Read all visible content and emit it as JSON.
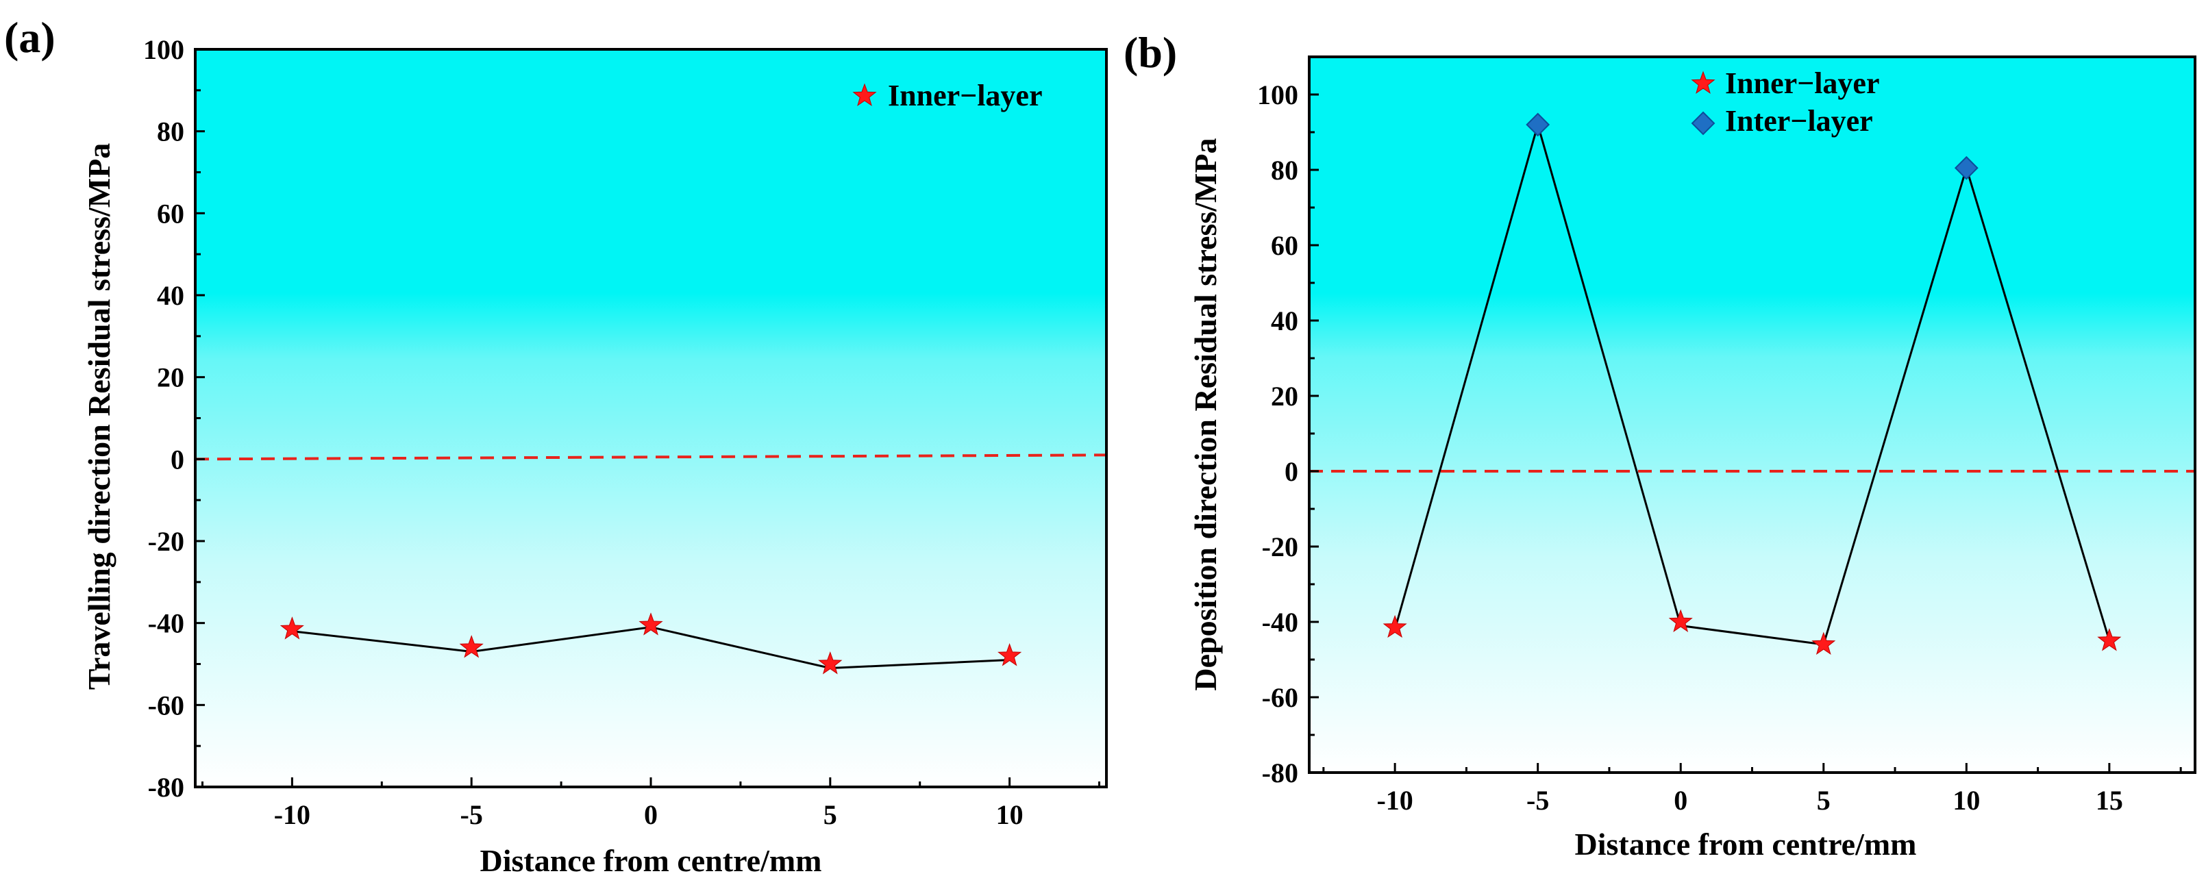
{
  "chart_data": [
    {
      "type": "line",
      "panel_label": "(a)",
      "xlabel": "Distance from centre/mm",
      "ylabel": "Travelling direction Residual stress/MPa",
      "xlim": [
        -12.7,
        12.7
      ],
      "ylim": [
        -80,
        100
      ],
      "xticks": [
        -10,
        -5,
        0,
        5,
        10
      ],
      "xtick_labels": [
        "-10",
        "-5",
        "0",
        "5",
        "10"
      ],
      "yticks": [
        -80,
        -60,
        -40,
        -20,
        0,
        20,
        40,
        60,
        80,
        100
      ],
      "ytick_labels": [
        "-80",
        "-60",
        "-40",
        "-20",
        "0",
        "20",
        "40",
        "60",
        "80",
        "100"
      ],
      "reference_line": {
        "y_start": 0,
        "y_end": 1,
        "style": "dashed",
        "color": "#e8231c"
      },
      "background": "gradient cyan (top) to white (bottom)",
      "legend_position": "top-right",
      "line_points": [
        {
          "x": -10,
          "y": -42
        },
        {
          "x": -5,
          "y": -47
        },
        {
          "x": 0,
          "y": -41
        },
        {
          "x": 5,
          "y": -51
        },
        {
          "x": 10,
          "y": -49
        }
      ],
      "series": [
        {
          "name": "Inner−layer",
          "marker": "star",
          "color": "#ff1a1a",
          "points": [
            {
              "x": -10,
              "y": -41.5
            },
            {
              "x": -5,
              "y": -46
            },
            {
              "x": 0,
              "y": -40.5
            },
            {
              "x": 5,
              "y": -50
            },
            {
              "x": 10,
              "y": -48
            }
          ]
        }
      ]
    },
    {
      "type": "line",
      "panel_label": "(b)",
      "xlabel": "Distance from centre/mm",
      "ylabel": "Deposition direction Residual stress/MPa",
      "xlim": [
        -13,
        18
      ],
      "ylim": [
        -80,
        110
      ],
      "xticks": [
        -10,
        -5,
        0,
        5,
        10,
        15
      ],
      "xtick_labels": [
        "-10",
        "-5",
        "0",
        "5",
        "10",
        "15"
      ],
      "yticks": [
        -80,
        -60,
        -40,
        -20,
        0,
        20,
        40,
        60,
        80,
        100
      ],
      "ytick_labels": [
        "-80",
        "-60",
        "-40",
        "-20",
        "0",
        "20",
        "40",
        "60",
        "80",
        "100"
      ],
      "reference_line": {
        "y_start": 0,
        "y_end": 0,
        "style": "dashed",
        "color": "#e8231c"
      },
      "background": "gradient cyan (top) to white (bottom)",
      "legend_position": "top-center",
      "line_points": [
        {
          "x": -10,
          "y": -42
        },
        {
          "x": -5,
          "y": 92
        },
        {
          "x": 0,
          "y": -41
        },
        {
          "x": 5,
          "y": -46
        },
        {
          "x": 10,
          "y": 80.5
        },
        {
          "x": 15,
          "y": -45
        }
      ],
      "series": [
        {
          "name": "Inner−layer",
          "marker": "star",
          "color": "#ff1a1a",
          "points": [
            {
              "x": -10,
              "y": -41.5
            },
            {
              "x": 0,
              "y": -40
            },
            {
              "x": 5,
              "y": -46
            },
            {
              "x": 15,
              "y": -45
            }
          ]
        },
        {
          "name": "Inter−layer",
          "marker": "diamond",
          "color": "#1f6fc4",
          "points": [
            {
              "x": -5,
              "y": 92
            },
            {
              "x": 10,
              "y": 80.5
            }
          ]
        }
      ]
    }
  ]
}
